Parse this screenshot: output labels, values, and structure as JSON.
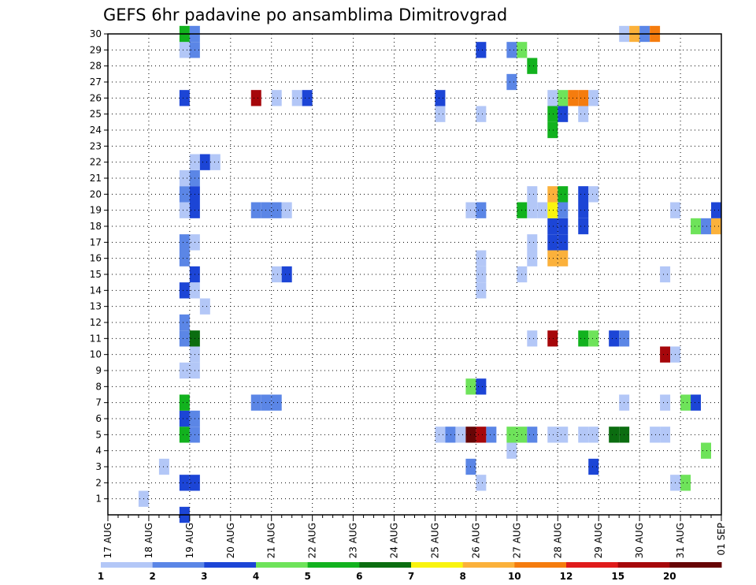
{
  "chart_data": {
    "type": "heatmap",
    "title": "GEFS 6hr padavine po ansamblima Dimitrovgrad",
    "xlabel": "",
    "ylabel": "",
    "x_tick_labels": [
      "17 AUG",
      "18 AUG",
      "19 AUG",
      "20 AUG",
      "21 AUG",
      "22 AUG",
      "23 AUG",
      "24 AUG",
      "25 AUG",
      "26 AUG",
      "27 AUG",
      "28 AUG",
      "29 AUG",
      "30 AUG",
      "31 AUG",
      "01 SEP"
    ],
    "xlim": [
      0,
      15
    ],
    "ylim": [
      0,
      30
    ],
    "y_ticks": [
      1,
      2,
      3,
      4,
      5,
      6,
      7,
      8,
      9,
      10,
      11,
      12,
      13,
      14,
      15,
      16,
      17,
      18,
      19,
      20,
      21,
      22,
      23,
      24,
      25,
      26,
      27,
      28,
      29,
      30
    ],
    "grid": true,
    "colorbar": {
      "labels": [
        "1",
        "2",
        "3",
        "4",
        "5",
        "6",
        "7",
        "8",
        "10",
        "12",
        "15",
        "20"
      ],
      "colors": [
        "#b3c7f7",
        "#5b86e6",
        "#1c45d6",
        "#6ee35a",
        "#12b21e",
        "#0b6d10",
        "#f9f40f",
        "#fbb13b",
        "#f57c0e",
        "#e01b1b",
        "#a6070b",
        "#670506"
      ]
    },
    "cells": [
      {
        "x": 1.75,
        "m": 0,
        "v": 3
      },
      {
        "x": 0.75,
        "m": 1,
        "v": 1
      },
      {
        "x": 1.75,
        "m": 2,
        "v": 3
      },
      {
        "x": 2.0,
        "m": 2,
        "v": 3
      },
      {
        "x": 1.25,
        "m": 3,
        "v": 1
      },
      {
        "x": 1.75,
        "m": 5,
        "v": 5
      },
      {
        "x": 2.0,
        "m": 5,
        "v": 2
      },
      {
        "x": 1.75,
        "m": 6,
        "v": 3
      },
      {
        "x": 2.0,
        "m": 6,
        "v": 2
      },
      {
        "x": 1.75,
        "m": 7,
        "v": 5
      },
      {
        "x": 1.75,
        "m": 9,
        "v": 1
      },
      {
        "x": 2.0,
        "m": 9,
        "v": 1
      },
      {
        "x": 2.0,
        "m": 10,
        "v": 1
      },
      {
        "x": 1.75,
        "m": 11,
        "v": 2
      },
      {
        "x": 2.0,
        "m": 11,
        "v": 6
      },
      {
        "x": 1.75,
        "m": 12,
        "v": 2
      },
      {
        "x": 2.25,
        "m": 13,
        "v": 1
      },
      {
        "x": 1.75,
        "m": 14,
        "v": 3
      },
      {
        "x": 2.0,
        "m": 14,
        "v": 1
      },
      {
        "x": 2.0,
        "m": 15,
        "v": 3
      },
      {
        "x": 1.75,
        "m": 16,
        "v": 2
      },
      {
        "x": 1.75,
        "m": 17,
        "v": 2
      },
      {
        "x": 2.0,
        "m": 17,
        "v": 1
      },
      {
        "x": 1.75,
        "m": 19,
        "v": 1
      },
      {
        "x": 2.0,
        "m": 19,
        "v": 3
      },
      {
        "x": 1.75,
        "m": 20,
        "v": 2
      },
      {
        "x": 2.0,
        "m": 20,
        "v": 3
      },
      {
        "x": 1.75,
        "m": 21,
        "v": 1
      },
      {
        "x": 2.0,
        "m": 21,
        "v": 2
      },
      {
        "x": 2.0,
        "m": 22,
        "v": 1
      },
      {
        "x": 2.25,
        "m": 22,
        "v": 3
      },
      {
        "x": 2.5,
        "m": 22,
        "v": 1
      },
      {
        "x": 1.75,
        "m": 26,
        "v": 3
      },
      {
        "x": 1.75,
        "m": 29,
        "v": 1
      },
      {
        "x": 2.0,
        "m": 29,
        "v": 2
      },
      {
        "x": 1.75,
        "m": 30,
        "v": 5
      },
      {
        "x": 2.0,
        "m": 30,
        "v": 2
      },
      {
        "x": 3.5,
        "m": 7,
        "v": 2
      },
      {
        "x": 3.75,
        "m": 7,
        "v": 2
      },
      {
        "x": 4.0,
        "m": 7,
        "v": 2
      },
      {
        "x": 4.0,
        "m": 15,
        "v": 1
      },
      {
        "x": 4.25,
        "m": 15,
        "v": 3
      },
      {
        "x": 3.5,
        "m": 19,
        "v": 2
      },
      {
        "x": 3.75,
        "m": 19,
        "v": 2
      },
      {
        "x": 4.0,
        "m": 19,
        "v": 2
      },
      {
        "x": 4.25,
        "m": 19,
        "v": 1
      },
      {
        "x": 3.5,
        "m": 26,
        "v": 11
      },
      {
        "x": 4.0,
        "m": 26,
        "v": 1
      },
      {
        "x": 4.5,
        "m": 26,
        "v": 1
      },
      {
        "x": 4.75,
        "m": 26,
        "v": 3
      },
      {
        "x": 8.0,
        "m": 5,
        "v": 1
      },
      {
        "x": 8.25,
        "m": 5,
        "v": 2
      },
      {
        "x": 8.5,
        "m": 5,
        "v": 1
      },
      {
        "x": 8.0,
        "m": 25,
        "v": 1
      },
      {
        "x": 8.0,
        "m": 26,
        "v": 3
      },
      {
        "x": 8.75,
        "m": 3,
        "v": 2
      },
      {
        "x": 9.0,
        "m": 2,
        "v": 1
      },
      {
        "x": 8.75,
        "m": 5,
        "v": 12
      },
      {
        "x": 9.0,
        "m": 5,
        "v": 11
      },
      {
        "x": 9.25,
        "m": 5,
        "v": 2
      },
      {
        "x": 8.75,
        "m": 8,
        "v": 4
      },
      {
        "x": 9.0,
        "m": 8,
        "v": 3
      },
      {
        "x": 9.0,
        "m": 14,
        "v": 1
      },
      {
        "x": 9.0,
        "m": 15,
        "v": 1
      },
      {
        "x": 9.0,
        "m": 16,
        "v": 1
      },
      {
        "x": 8.75,
        "m": 19,
        "v": 1
      },
      {
        "x": 9.0,
        "m": 19,
        "v": 2
      },
      {
        "x": 9.0,
        "m": 25,
        "v": 1
      },
      {
        "x": 9.0,
        "m": 29,
        "v": 3
      },
      {
        "x": 9.75,
        "m": 4,
        "v": 1
      },
      {
        "x": 9.75,
        "m": 5,
        "v": 4
      },
      {
        "x": 10.0,
        "m": 5,
        "v": 4
      },
      {
        "x": 10.25,
        "m": 5,
        "v": 2
      },
      {
        "x": 10.25,
        "m": 11,
        "v": 1
      },
      {
        "x": 10.0,
        "m": 15,
        "v": 1
      },
      {
        "x": 10.25,
        "m": 16,
        "v": 1
      },
      {
        "x": 10.25,
        "m": 17,
        "v": 1
      },
      {
        "x": 10.0,
        "m": 19,
        "v": 5
      },
      {
        "x": 10.25,
        "m": 19,
        "v": 1
      },
      {
        "x": 10.25,
        "m": 20,
        "v": 1
      },
      {
        "x": 9.75,
        "m": 27,
        "v": 2
      },
      {
        "x": 10.25,
        "m": 28,
        "v": 5
      },
      {
        "x": 9.75,
        "m": 29,
        "v": 2
      },
      {
        "x": 10.0,
        "m": 29,
        "v": 4
      },
      {
        "x": 10.75,
        "m": 5,
        "v": 1
      },
      {
        "x": 11.0,
        "m": 5,
        "v": 1
      },
      {
        "x": 10.75,
        "m": 11,
        "v": 11
      },
      {
        "x": 10.75,
        "m": 16,
        "v": 8
      },
      {
        "x": 11.0,
        "m": 16,
        "v": 8
      },
      {
        "x": 10.75,
        "m": 17,
        "v": 3
      },
      {
        "x": 11.0,
        "m": 17,
        "v": 3
      },
      {
        "x": 10.75,
        "m": 18,
        "v": 3
      },
      {
        "x": 11.0,
        "m": 18,
        "v": 3
      },
      {
        "x": 10.5,
        "m": 19,
        "v": 1
      },
      {
        "x": 10.75,
        "m": 19,
        "v": 7
      },
      {
        "x": 11.0,
        "m": 19,
        "v": 2
      },
      {
        "x": 10.75,
        "m": 20,
        "v": 8
      },
      {
        "x": 11.0,
        "m": 20,
        "v": 5
      },
      {
        "x": 10.75,
        "m": 24,
        "v": 5
      },
      {
        "x": 10.75,
        "m": 25,
        "v": 5
      },
      {
        "x": 11.0,
        "m": 25,
        "v": 3
      },
      {
        "x": 10.75,
        "m": 26,
        "v": 1
      },
      {
        "x": 11.0,
        "m": 26,
        "v": 4
      },
      {
        "x": 11.25,
        "m": 26,
        "v": 9
      },
      {
        "x": 11.5,
        "m": 26,
        "v": 9
      },
      {
        "x": 11.75,
        "m": 26,
        "v": 1
      },
      {
        "x": 11.5,
        "m": 5,
        "v": 1
      },
      {
        "x": 11.75,
        "m": 5,
        "v": 1
      },
      {
        "x": 11.5,
        "m": 11,
        "v": 5
      },
      {
        "x": 11.75,
        "m": 11,
        "v": 4
      },
      {
        "x": 11.5,
        "m": 18,
        "v": 3
      },
      {
        "x": 11.5,
        "m": 19,
        "v": 3
      },
      {
        "x": 11.5,
        "m": 20,
        "v": 3
      },
      {
        "x": 11.75,
        "m": 20,
        "v": 1
      },
      {
        "x": 11.5,
        "m": 25,
        "v": 1
      },
      {
        "x": 11.75,
        "m": 3,
        "v": 3
      },
      {
        "x": 12.25,
        "m": 5,
        "v": 6
      },
      {
        "x": 12.5,
        "m": 5,
        "v": 6
      },
      {
        "x": 12.25,
        "m": 11,
        "v": 3
      },
      {
        "x": 12.5,
        "m": 11,
        "v": 2
      },
      {
        "x": 12.5,
        "m": 7,
        "v": 1
      },
      {
        "x": 12.5,
        "m": 30,
        "v": 1
      },
      {
        "x": 12.75,
        "m": 30,
        "v": 8
      },
      {
        "x": 13.0,
        "m": 30,
        "v": 2
      },
      {
        "x": 13.25,
        "m": 30,
        "v": 9
      },
      {
        "x": 13.25,
        "m": 5,
        "v": 1
      },
      {
        "x": 13.5,
        "m": 5,
        "v": 1
      },
      {
        "x": 13.5,
        "m": 7,
        "v": 1
      },
      {
        "x": 13.5,
        "m": 10,
        "v": 11
      },
      {
        "x": 13.75,
        "m": 10,
        "v": 1
      },
      {
        "x": 13.5,
        "m": 15,
        "v": 1
      },
      {
        "x": 13.75,
        "m": 2,
        "v": 1
      },
      {
        "x": 14.0,
        "m": 2,
        "v": 4
      },
      {
        "x": 13.75,
        "m": 19,
        "v": 1
      },
      {
        "x": 14.0,
        "m": 7,
        "v": 4
      },
      {
        "x": 14.25,
        "m": 7,
        "v": 3
      },
      {
        "x": 14.25,
        "m": 18,
        "v": 4
      },
      {
        "x": 14.5,
        "m": 18,
        "v": 2
      },
      {
        "x": 14.75,
        "m": 18,
        "v": 8
      },
      {
        "x": 14.75,
        "m": 19,
        "v": 3
      },
      {
        "x": 14.5,
        "m": 4,
        "v": 4
      }
    ]
  }
}
